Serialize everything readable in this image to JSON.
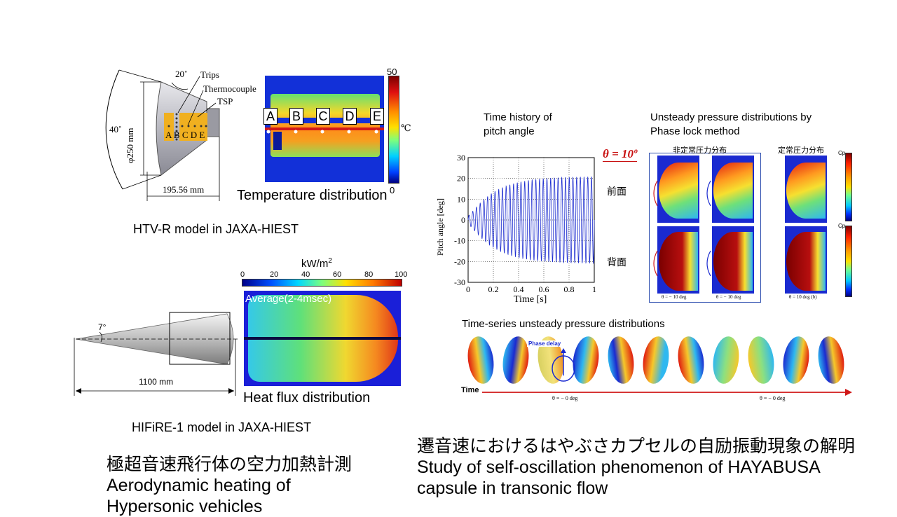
{
  "htv": {
    "angle_20": "20˚",
    "angle_40": "40˚",
    "diameter": "φ250 mm",
    "length": "195.56 mm",
    "trips": "Trips",
    "thermocouple": "Thermocouple",
    "tsp": "TSP",
    "letters_model": "A B C D E",
    "caption": "HTV-R model in JAXA-HIEST"
  },
  "temperature": {
    "letters": [
      "A",
      "B",
      "C",
      "D",
      "E"
    ],
    "scale_max": "50",
    "scale_min": "0",
    "unit": "℃",
    "caption": "Temperature distribution"
  },
  "hifire": {
    "angle": "7°",
    "length": "1100 mm",
    "caption": "HIFiRE-1 model in JAXA-HIEST"
  },
  "heatflux": {
    "unit_main": "kW/m",
    "unit_sup": "2",
    "ticks": [
      "0",
      "20",
      "40",
      "60",
      "80",
      "100"
    ],
    "average": "Average(2-4msec)",
    "caption": "Heat flux distribution"
  },
  "left_title": {
    "jp": "極超音速飛行体の空力加熱計測",
    "en": "Aerodynamic heating of",
    "en2": "Hypersonic vehicles"
  },
  "pitch": {
    "title_line1": "Time history of",
    "title_line2": "pitch angle",
    "ylabel": "Pitch angle  [deg]",
    "xlabel": "Time  [s]",
    "yticks": [
      "30",
      "20",
      "10",
      "0",
      "-10",
      "-20",
      "-30"
    ],
    "xticks": [
      "0",
      "0.2",
      "0.4",
      "0.6",
      "0.8",
      "1"
    ]
  },
  "unsteady": {
    "title_line1": "Unsteady pressure distributions by",
    "title_line2": "Phase lock method",
    "theta": "θ = 10º",
    "header_unsteady": "非定常圧力分布",
    "header_steady": "定常圧力分布",
    "front": "前面",
    "back": "背面",
    "foot1": "θ = − 10 deg",
    "foot2": "θ = − 10 deg",
    "foot3": "θ = 10 deg (b)",
    "cp": "Cp"
  },
  "timeseries": {
    "title": "Time-series unsteady pressure distributions",
    "phase_delay": "Phase delay",
    "time_label": "Time",
    "theta1": "θ = − 0 deg",
    "theta2": "θ = − 0 deg"
  },
  "right_title": {
    "jp": "遷音速におけるはやぶさカプセルの自励振動現象の解明",
    "en1": "Study of self-oscillation phenomenon of HAYABUSA",
    "en2": "capsule in transonic flow"
  },
  "colors": {
    "jet_red": "#c81010",
    "jet_blue": "#1a2ad0",
    "plot_line": "#1f2fd0",
    "red_accent": "#d01818"
  }
}
